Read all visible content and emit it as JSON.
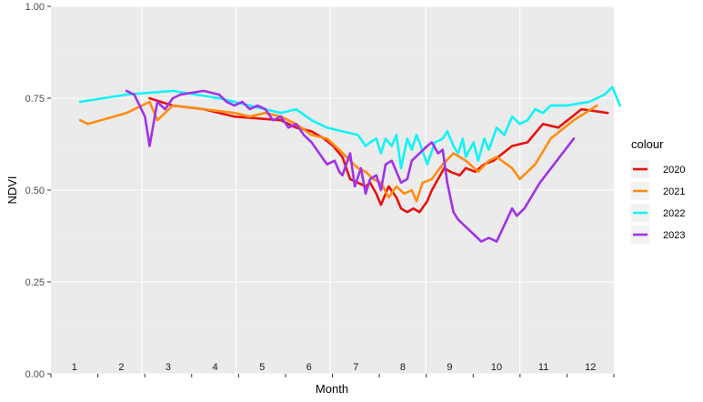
{
  "chart_data": {
    "type": "line",
    "xlabel": "Month",
    "ylabel": "NDVI",
    "ylim": [
      0,
      1
    ],
    "xlim": [
      1,
      366
    ],
    "y_ticks": [
      "0.00",
      "0.25",
      "0.50",
      "0.75",
      "1.00"
    ],
    "month_labels": [
      "1",
      "2",
      "3",
      "4",
      "5",
      "6",
      "7",
      "8",
      "9",
      "10",
      "11",
      "12"
    ],
    "legend": {
      "title": "colour",
      "position": "right"
    },
    "grid": true,
    "series": [
      {
        "name": "2020",
        "color": "#e8120e",
        "x": [
          65,
          80,
          100,
          120,
          150,
          160,
          170,
          178,
          184,
          190,
          195,
          200,
          205,
          208,
          212,
          215,
          220,
          225,
          228,
          232,
          236,
          240,
          245,
          248,
          252,
          256,
          260,
          266,
          270,
          276,
          282,
          288,
          300,
          310,
          320,
          330,
          345,
          362
        ],
        "y": [
          0.75,
          0.73,
          0.72,
          0.7,
          0.69,
          0.67,
          0.66,
          0.64,
          0.62,
          0.59,
          0.53,
          0.52,
          0.51,
          0.52,
          0.49,
          0.46,
          0.51,
          0.48,
          0.45,
          0.44,
          0.45,
          0.44,
          0.47,
          0.5,
          0.53,
          0.56,
          0.55,
          0.54,
          0.56,
          0.55,
          0.57,
          0.58,
          0.62,
          0.63,
          0.68,
          0.67,
          0.72,
          0.71
        ]
      },
      {
        "name": "2021",
        "color": "#ff8c12",
        "x": [
          20,
          25,
          50,
          60,
          65,
          70,
          80,
          100,
          120,
          130,
          140,
          150,
          160,
          170,
          180,
          188,
          195,
          200,
          205,
          210,
          215,
          220,
          225,
          230,
          235,
          238,
          242,
          248,
          255,
          262,
          270,
          278,
          285,
          290,
          300,
          305,
          315,
          325,
          340,
          355
        ],
        "y": [
          0.69,
          0.68,
          0.71,
          0.73,
          0.74,
          0.69,
          0.73,
          0.72,
          0.71,
          0.7,
          0.71,
          0.7,
          0.68,
          0.65,
          0.64,
          0.61,
          0.58,
          0.56,
          0.55,
          0.53,
          0.52,
          0.48,
          0.51,
          0.49,
          0.5,
          0.47,
          0.52,
          0.53,
          0.57,
          0.6,
          0.58,
          0.55,
          0.58,
          0.59,
          0.56,
          0.53,
          0.57,
          0.64,
          0.69,
          0.73
        ]
      },
      {
        "name": "2022",
        "color": "#13f2f7",
        "x": [
          20,
          50,
          80,
          110,
          130,
          150,
          160,
          170,
          180,
          190,
          200,
          205,
          208,
          212,
          215,
          218,
          222,
          225,
          228,
          232,
          235,
          238,
          240,
          245,
          250,
          255,
          258,
          262,
          265,
          268,
          270,
          275,
          278,
          282,
          285,
          290,
          295,
          300,
          305,
          310,
          315,
          320,
          325,
          335,
          350,
          360,
          365,
          370
        ],
        "y": [
          0.74,
          0.76,
          0.77,
          0.75,
          0.73,
          0.71,
          0.72,
          0.69,
          0.67,
          0.66,
          0.65,
          0.62,
          0.63,
          0.64,
          0.6,
          0.64,
          0.62,
          0.65,
          0.56,
          0.64,
          0.61,
          0.65,
          0.63,
          0.57,
          0.63,
          0.64,
          0.66,
          0.62,
          0.6,
          0.64,
          0.59,
          0.63,
          0.58,
          0.64,
          0.61,
          0.67,
          0.65,
          0.7,
          0.68,
          0.69,
          0.72,
          0.71,
          0.73,
          0.73,
          0.74,
          0.76,
          0.78,
          0.73
        ]
      },
      {
        "name": "2023",
        "color": "#a032e8",
        "x": [
          50,
          55,
          62,
          65,
          70,
          75,
          80,
          85,
          100,
          110,
          115,
          120,
          125,
          130,
          135,
          140,
          145,
          150,
          155,
          160,
          165,
          170,
          175,
          180,
          185,
          188,
          190,
          195,
          198,
          202,
          205,
          208,
          212,
          215,
          218,
          222,
          225,
          228,
          232,
          235,
          240,
          245,
          248,
          252,
          255,
          258,
          262,
          265,
          270,
          275,
          280,
          285,
          290,
          300,
          303,
          308,
          318,
          340
        ],
        "y": [
          0.77,
          0.76,
          0.7,
          0.62,
          0.74,
          0.72,
          0.75,
          0.76,
          0.77,
          0.76,
          0.74,
          0.73,
          0.74,
          0.72,
          0.73,
          0.72,
          0.69,
          0.7,
          0.67,
          0.68,
          0.65,
          0.63,
          0.6,
          0.57,
          0.58,
          0.55,
          0.54,
          0.6,
          0.51,
          0.56,
          0.49,
          0.53,
          0.54,
          0.5,
          0.57,
          0.58,
          0.55,
          0.52,
          0.53,
          0.58,
          0.6,
          0.62,
          0.63,
          0.6,
          0.61,
          0.52,
          0.44,
          0.42,
          0.4,
          0.38,
          0.36,
          0.37,
          0.36,
          0.45,
          0.43,
          0.45,
          0.52,
          0.64
        ]
      }
    ]
  }
}
